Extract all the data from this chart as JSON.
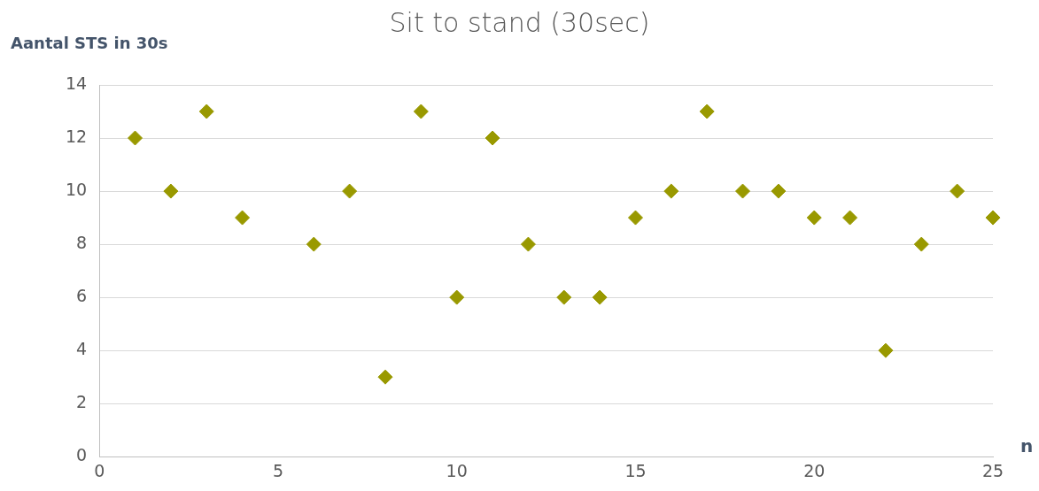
{
  "chart_data": {
    "type": "scatter",
    "title": "Sit to stand (30sec)",
    "xlabel": "n",
    "ylabel": "Aantal STS in 30s",
    "x": [
      1,
      2,
      3,
      4,
      6,
      7,
      8,
      9,
      10,
      11,
      12,
      13,
      14,
      15,
      16,
      17,
      18,
      19,
      20,
      21,
      22,
      23,
      24,
      25
    ],
    "series": [
      {
        "color": "#999900",
        "values": [
          12,
          10,
          13,
          9,
          8,
          10,
          3,
          13,
          6,
          12,
          8,
          6,
          6,
          9,
          10,
          13,
          10,
          10,
          9,
          9,
          4,
          8,
          10,
          9
        ]
      }
    ],
    "xlim": [
      0,
      25
    ],
    "xticks": [
      0,
      5,
      10,
      15,
      20,
      25
    ],
    "ylim": [
      0,
      14
    ],
    "yticks": [
      0,
      2,
      4,
      6,
      8,
      10,
      12,
      14
    ],
    "grid": "y",
    "legend": false,
    "marker": "diamond"
  }
}
